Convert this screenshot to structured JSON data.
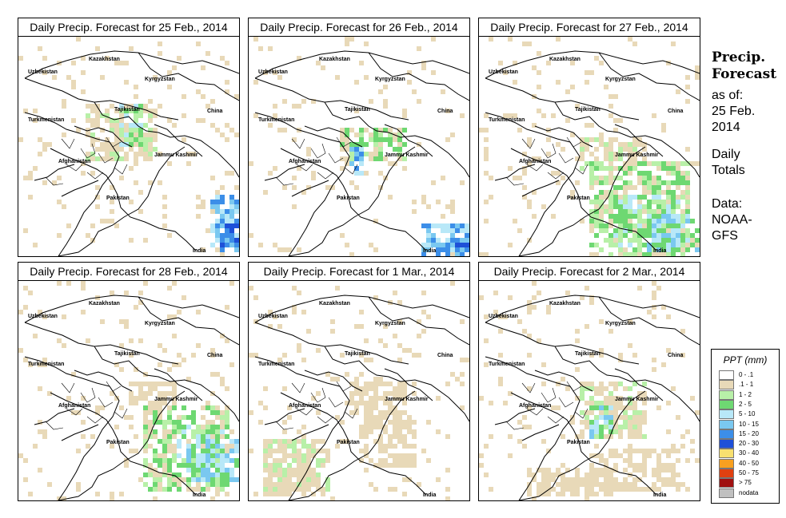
{
  "panels": [
    {
      "title": "Daily Precip. Forecast for  25 Feb., 2014",
      "date": "25 Feb., 2014"
    },
    {
      "title": "Daily Precip. Forecast for  26 Feb., 2014",
      "date": "26 Feb., 2014"
    },
    {
      "title": "Daily Precip. Forecast for  27 Feb., 2014",
      "date": "27 Feb., 2014"
    },
    {
      "title": "Daily Precip. Forecast for  28 Feb., 2014",
      "date": "28 Feb., 2014"
    },
    {
      "title": "Daily Precip. Forecast for  1 Mar., 2014",
      "date": "1 Mar., 2014"
    },
    {
      "title": "Daily Precip. Forecast for  2 Mar., 2014",
      "date": "2 Mar., 2014"
    }
  ],
  "map_labels": [
    {
      "name": "Kazakhstan"
    },
    {
      "name": "Uzbekistan"
    },
    {
      "name": "Kyrgyzstan"
    },
    {
      "name": "Tajikistan"
    },
    {
      "name": "China"
    },
    {
      "name": "Turkmenistan"
    },
    {
      "name": "Afghanistan"
    },
    {
      "name": "Jammu Kashmir"
    },
    {
      "name": "Pakistan"
    },
    {
      "name": "India"
    }
  ],
  "sidebar": {
    "title_line1": "Precip.",
    "title_line2": "Forecast",
    "asof_line1": "as of:",
    "asof_line2": "25 Feb.",
    "asof_line3": "2014",
    "daily_line1": "Daily",
    "daily_line2": "Totals",
    "data_line1": "Data:",
    "data_line2": "NOAA-",
    "data_line3": "GFS"
  },
  "legend": {
    "title": "PPT (mm)",
    "items": [
      {
        "label": "0 - .1",
        "color": "#ffffff"
      },
      {
        "label": ".1 - 1",
        "color": "#e8d9b8"
      },
      {
        "label": "1 - 2",
        "color": "#b8f0a8"
      },
      {
        "label": "2 - 5",
        "color": "#6ed872"
      },
      {
        "label": "5 - 10",
        "color": "#b8e8f8"
      },
      {
        "label": "10 - 15",
        "color": "#7ac8f0"
      },
      {
        "label": "15 - 20",
        "color": "#3c8ee8"
      },
      {
        "label": "20 - 30",
        "color": "#1e50d8"
      },
      {
        "label": "30 - 40",
        "color": "#f8e070"
      },
      {
        "label": "40 - 50",
        "color": "#f8a020"
      },
      {
        "label": "50 - 75",
        "color": "#e04010"
      },
      {
        "label": "> 75",
        "color": "#a01010"
      },
      {
        "label": "nodata",
        "color": "#c0c0c0"
      }
    ]
  }
}
